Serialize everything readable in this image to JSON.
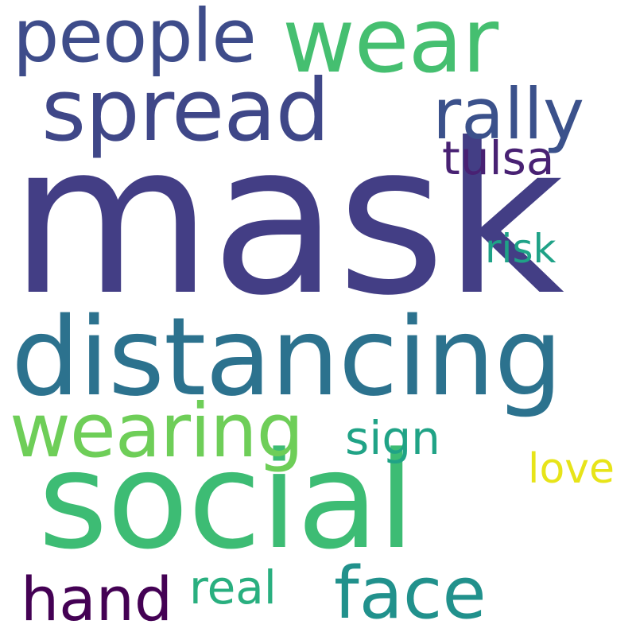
{
  "background": "#ffffff",
  "words": [
    {
      "id": "mask",
      "text": "mask",
      "color": "#433e85"
    },
    {
      "id": "distancing",
      "text": "distancing",
      "color": "#2c728e"
    },
    {
      "id": "social",
      "text": "social",
      "color": "#3dbc74"
    },
    {
      "id": "spread",
      "text": "spread",
      "color": "#3f4788"
    },
    {
      "id": "wear",
      "text": "wear",
      "color": "#45bf70"
    },
    {
      "id": "people",
      "text": "people",
      "color": "#3e4c8a"
    },
    {
      "id": "wearing",
      "text": "wearing",
      "color": "#6ece58"
    },
    {
      "id": "rally",
      "text": "rally",
      "color": "#3b518b"
    },
    {
      "id": "tulsa",
      "text": "tulsa",
      "color": "#482173"
    },
    {
      "id": "risk",
      "text": "risk",
      "color": "#1fa287"
    },
    {
      "id": "sign",
      "text": "sign",
      "color": "#20a386"
    },
    {
      "id": "love",
      "text": "love",
      "color": "#e7e419"
    },
    {
      "id": "hand",
      "text": "hand",
      "color": "#440154"
    },
    {
      "id": "real",
      "text": "real",
      "color": "#29af7f"
    },
    {
      "id": "face",
      "text": "face",
      "color": "#21918c"
    }
  ]
}
